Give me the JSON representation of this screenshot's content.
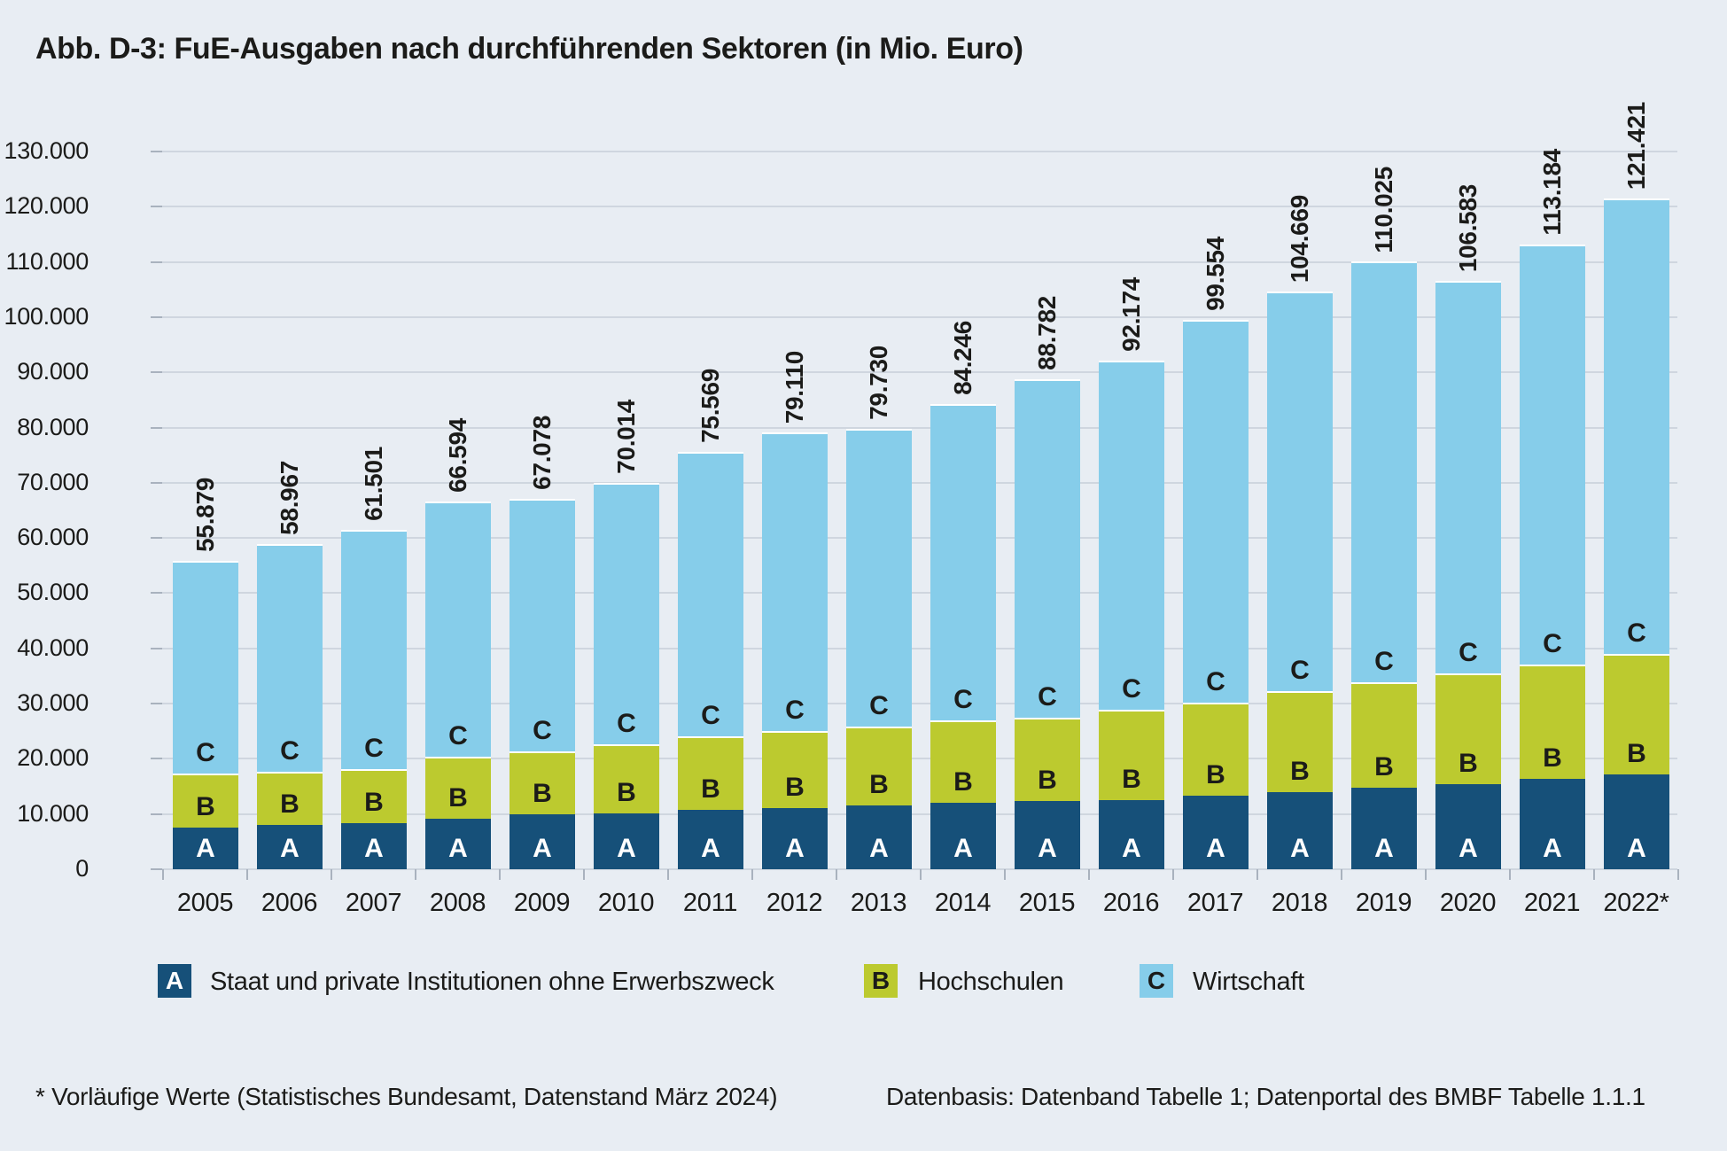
{
  "title": "Abb. D-3: FuE-Ausgaben nach durchführenden Sektoren (in Mio. Euro)",
  "colors": {
    "background": "#e8edf3",
    "sector_a_navy": "#165079",
    "sector_b_green": "#bcca2f",
    "sector_c_lightblue": "#86cdea",
    "gridline": "#cfd6df",
    "tick": "#a9b2be",
    "text": "#1b1b19",
    "segment_separator": "#ffffff",
    "letter_on_navy": "#ffffff",
    "letter_on_light": "#1b1b19"
  },
  "y_axis": {
    "tick_labels": [
      "130.000",
      "120.000",
      "110.000",
      "100.000",
      "90.000",
      "80.000",
      "70.000",
      "60.000",
      "50.000",
      "40.000",
      "30.000",
      "20.000",
      "10.000",
      "0"
    ],
    "max": 130000,
    "step": 10000
  },
  "chart_data": {
    "type": "bar",
    "stacked": true,
    "title": "Abb. D-3: FuE-Ausgaben nach durchführenden Sektoren (in Mio. Euro)",
    "unit": "Mio. Euro",
    "categories": [
      "2005",
      "2006",
      "2007",
      "2008",
      "2009",
      "2010",
      "2011",
      "2012",
      "2013",
      "2014",
      "2015",
      "2016",
      "2017",
      "2018",
      "2019",
      "2020",
      "2021",
      "2022*"
    ],
    "series": [
      {
        "key": "A",
        "name": "Staat und private Institutionen ohne Erwerbszweck",
        "color": "#165079",
        "values_estimated_from_chart": true,
        "values": [
          7600,
          8000,
          8400,
          9200,
          9900,
          10100,
          10800,
          11000,
          11600,
          12100,
          12300,
          12600,
          13300,
          14000,
          14800,
          15400,
          16400,
          17200
        ]
      },
      {
        "key": "B",
        "name": "Hochschulen",
        "color": "#bcca2f",
        "values_estimated_from_chart": true,
        "values": [
          9700,
          9700,
          9800,
          11200,
          11500,
          12500,
          13300,
          14000,
          14200,
          14800,
          15100,
          16300,
          16800,
          18200,
          19000,
          20000,
          20600,
          21800
        ]
      },
      {
        "key": "C",
        "name": "Wirtschaft",
        "color": "#86cdea",
        "values_estimated_from_chart": true,
        "values": [
          38579,
          41267,
          43301,
          46194,
          45678,
          47414,
          51469,
          54110,
          53930,
          57346,
          61382,
          63274,
          69454,
          72469,
          76225,
          71183,
          76184,
          82421
        ]
      }
    ],
    "totals": [
      55879,
      58967,
      61501,
      66594,
      67078,
      70014,
      75569,
      79110,
      79730,
      84246,
      88782,
      92174,
      99554,
      104669,
      110025,
      106583,
      113184,
      121421
    ],
    "total_labels": [
      "55.879",
      "58.967",
      "61.501",
      "66.594",
      "67.078",
      "70.014",
      "75.569",
      "79.110",
      "79.730",
      "84.246",
      "88.782",
      "92.174",
      "99.554",
      "104.669",
      "110.025",
      "106.583",
      "113.184",
      "121.421"
    ],
    "ylim": [
      0,
      130000
    ],
    "grid": true,
    "legend_position": "bottom"
  },
  "legend": {
    "items": [
      {
        "key": "A",
        "label": "Staat und private Institutionen ohne Erwerbszweck"
      },
      {
        "key": "B",
        "label": "Hochschulen"
      },
      {
        "key": "C",
        "label": "Wirtschaft"
      }
    ]
  },
  "footnote": {
    "left": "* Vorläufige Werte (Statistisches Bundesamt, Datenstand März 2024)",
    "right": "Datenbasis: Datenband Tabelle 1; Datenportal des BMBF Tabelle 1.1.1"
  }
}
